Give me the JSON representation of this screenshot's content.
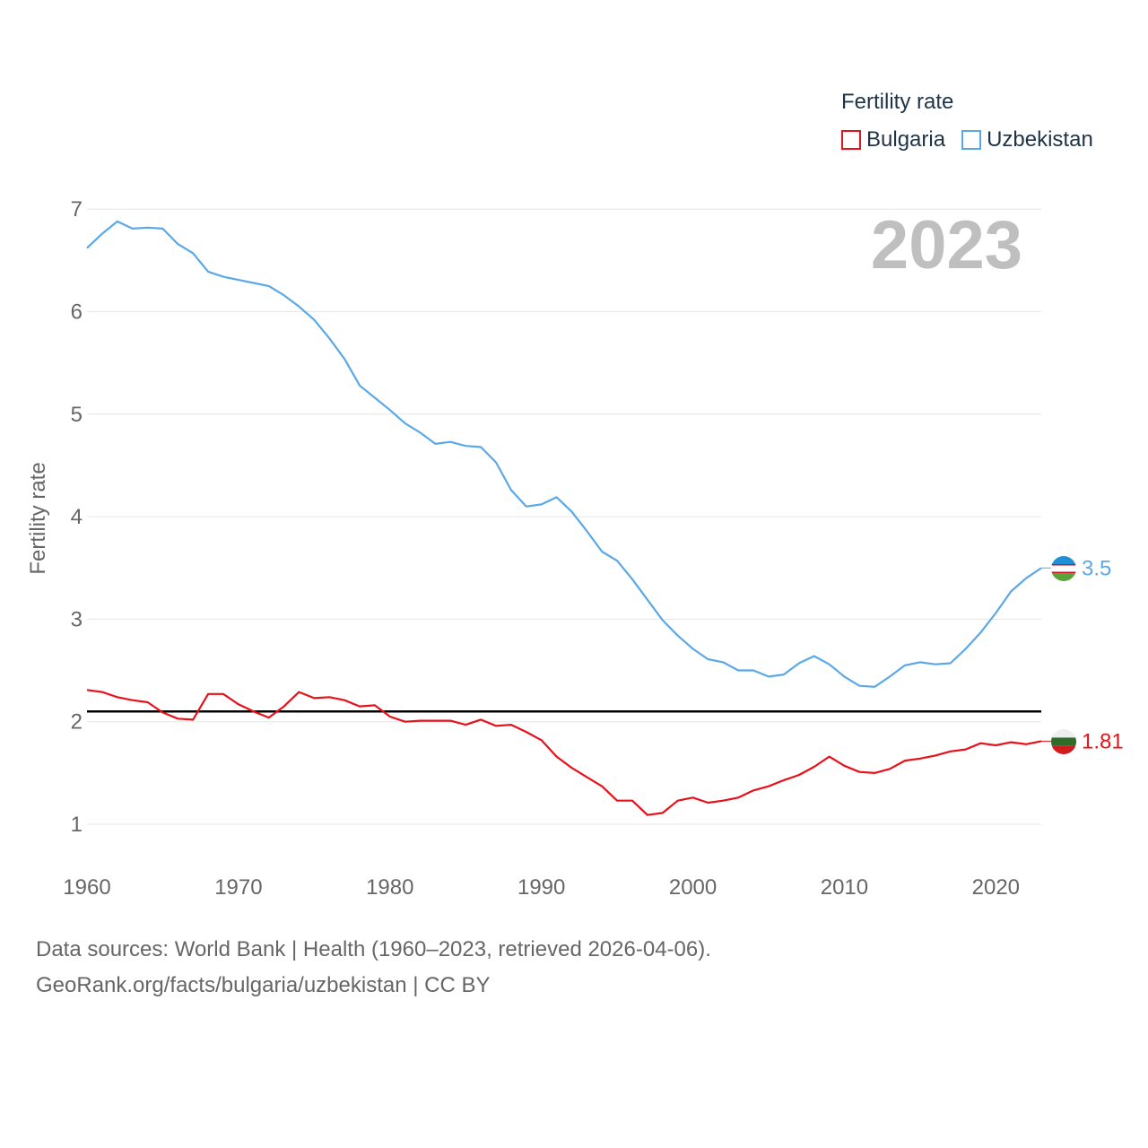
{
  "chart_data": {
    "type": "line",
    "legend_title": "Fertility rate",
    "ylabel": "Fertility rate",
    "year_label": "2023",
    "xlim": [
      1960,
      2023
    ],
    "ylim": [
      0.4,
      7.4
    ],
    "yticks": [
      1,
      2,
      3,
      4,
      5,
      6,
      7
    ],
    "xticks": [
      1960,
      1970,
      1980,
      1990,
      2000,
      2010,
      2020
    ],
    "reference_line": {
      "y": 2.1,
      "color": "#000000"
    },
    "series": [
      {
        "name": "Bulgaria",
        "color": "#e8111a",
        "end_label": "1.81",
        "x": [
          1960,
          1961,
          1962,
          1963,
          1964,
          1965,
          1966,
          1967,
          1968,
          1969,
          1970,
          1971,
          1972,
          1973,
          1974,
          1975,
          1976,
          1977,
          1978,
          1979,
          1980,
          1981,
          1982,
          1983,
          1984,
          1985,
          1986,
          1987,
          1988,
          1989,
          1990,
          1991,
          1992,
          1993,
          1994,
          1995,
          1996,
          1997,
          1998,
          1999,
          2000,
          2001,
          2002,
          2003,
          2004,
          2005,
          2006,
          2007,
          2008,
          2009,
          2010,
          2011,
          2012,
          2013,
          2014,
          2015,
          2016,
          2017,
          2018,
          2019,
          2020,
          2021,
          2022,
          2023
        ],
        "values": [
          2.31,
          2.29,
          2.24,
          2.21,
          2.19,
          2.09,
          2.03,
          2.02,
          2.27,
          2.27,
          2.17,
          2.1,
          2.04,
          2.15,
          2.29,
          2.23,
          2.24,
          2.21,
          2.15,
          2.16,
          2.05,
          2.0,
          2.01,
          2.01,
          2.01,
          1.97,
          2.02,
          1.96,
          1.97,
          1.9,
          1.82,
          1.66,
          1.55,
          1.46,
          1.37,
          1.23,
          1.23,
          1.09,
          1.11,
          1.23,
          1.26,
          1.21,
          1.23,
          1.26,
          1.33,
          1.37,
          1.43,
          1.48,
          1.56,
          1.66,
          1.57,
          1.51,
          1.5,
          1.54,
          1.62,
          1.64,
          1.67,
          1.71,
          1.73,
          1.79,
          1.77,
          1.8,
          1.78,
          1.81
        ]
      },
      {
        "name": "Uzbekistan",
        "color": "#5ba8e8",
        "end_label": "3.5",
        "x": [
          1960,
          1961,
          1962,
          1963,
          1964,
          1965,
          1966,
          1967,
          1968,
          1969,
          1970,
          1971,
          1972,
          1973,
          1974,
          1975,
          1976,
          1977,
          1978,
          1979,
          1980,
          1981,
          1982,
          1983,
          1984,
          1985,
          1986,
          1987,
          1988,
          1989,
          1990,
          1991,
          1992,
          1993,
          1994,
          1995,
          1996,
          1997,
          1998,
          1999,
          2000,
          2001,
          2002,
          2003,
          2004,
          2005,
          2006,
          2007,
          2008,
          2009,
          2010,
          2011,
          2012,
          2013,
          2014,
          2015,
          2016,
          2017,
          2018,
          2019,
          2020,
          2021,
          2022,
          2023
        ],
        "values": [
          6.62,
          6.76,
          6.88,
          6.81,
          6.82,
          6.81,
          6.66,
          6.57,
          6.39,
          6.34,
          6.31,
          6.28,
          6.25,
          6.16,
          6.05,
          5.92,
          5.74,
          5.54,
          5.28,
          5.16,
          5.04,
          4.91,
          4.82,
          4.71,
          4.73,
          4.69,
          4.68,
          4.53,
          4.26,
          4.1,
          4.12,
          4.19,
          4.05,
          3.86,
          3.66,
          3.57,
          3.39,
          3.19,
          2.99,
          2.84,
          2.71,
          2.61,
          2.58,
          2.5,
          2.5,
          2.44,
          2.46,
          2.57,
          2.64,
          2.56,
          2.44,
          2.35,
          2.34,
          2.44,
          2.55,
          2.58,
          2.56,
          2.57,
          2.71,
          2.87,
          3.06,
          3.27,
          3.4,
          3.5
        ]
      }
    ]
  },
  "footer": {
    "line1": "Data sources: World Bank | Health (1960–2023, retrieved 2026-04-06).",
    "line2": "GeoRank.org/facts/bulgaria/uzbekistan | CC BY"
  }
}
